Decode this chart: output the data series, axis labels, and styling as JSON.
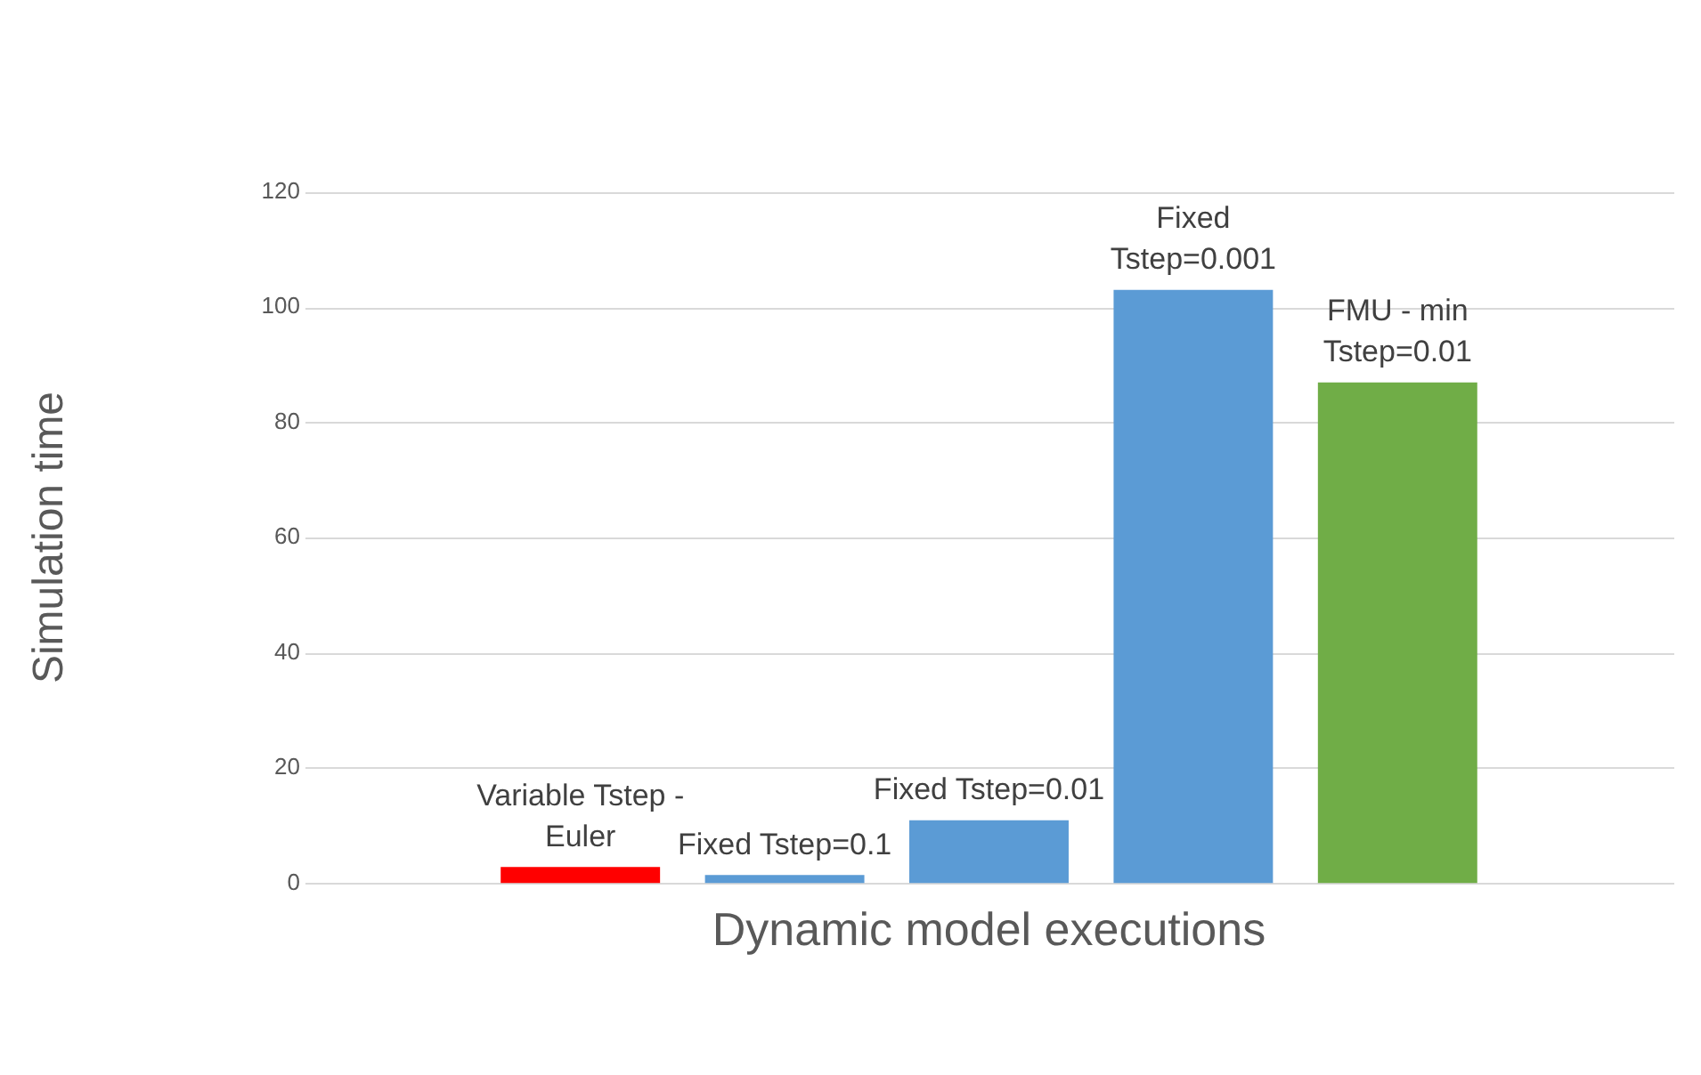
{
  "chart_data": {
    "type": "bar",
    "xlabel": "Dynamic model executions",
    "ylabel": "Simulation time",
    "categories": [
      "Variable Tstep - Euler",
      "Fixed Tstep=0.1",
      "Fixed Tstep=0.01",
      "Fixed Tstep=0.001",
      "FMU - min Tstep=0.01"
    ],
    "values": [
      2.8,
      1.4,
      10.9,
      103,
      86.9
    ],
    "colors": [
      "#ff0000",
      "#5b9bd5",
      "#5b9bd5",
      "#5b9bd5",
      "#70ad47"
    ],
    "ylim": [
      0,
      120
    ],
    "yticks": [
      0,
      20,
      40,
      60,
      80,
      100,
      120
    ],
    "grid": "y",
    "legend": false
  }
}
